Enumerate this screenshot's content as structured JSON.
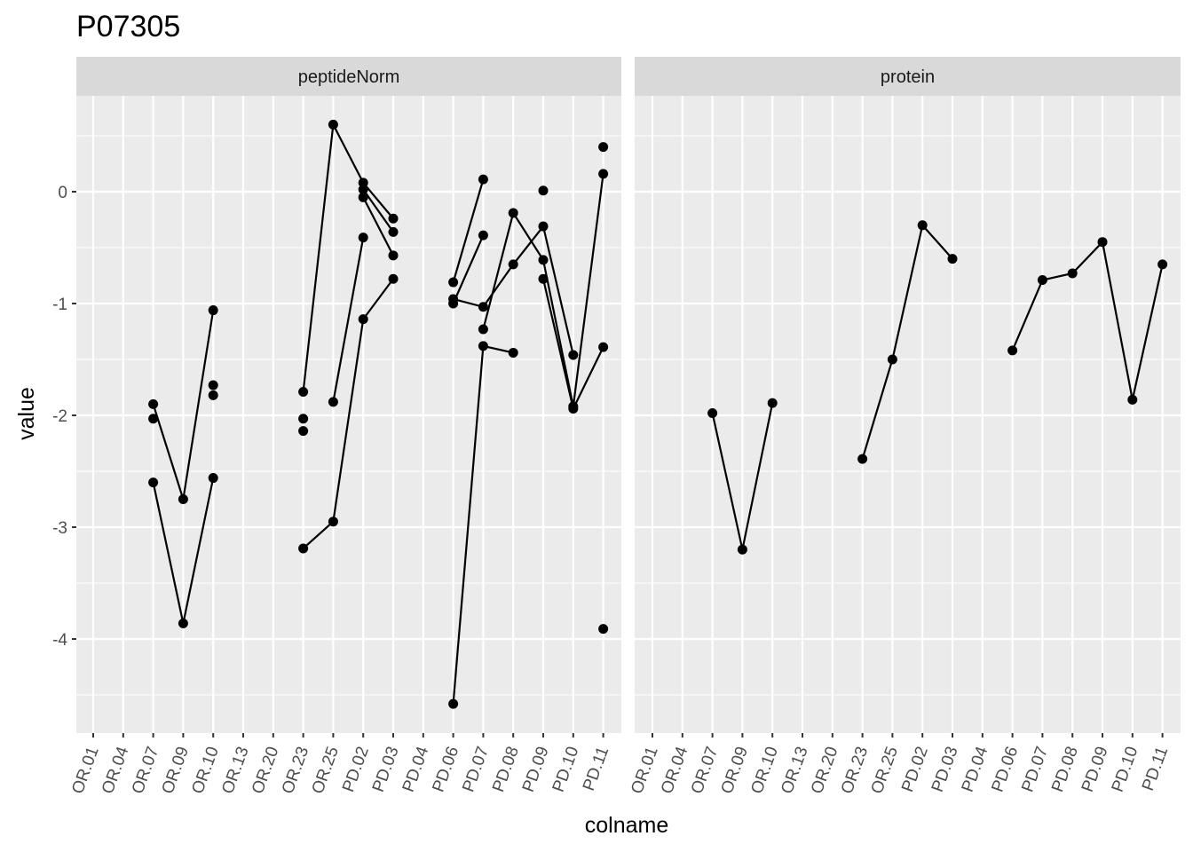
{
  "chart_data": {
    "type": "line",
    "title": "P07305",
    "xlabel": "colname",
    "ylabel": "value",
    "ylim": [
      -4.85,
      0.85
    ],
    "y_ticks": [
      0,
      -1,
      -2,
      -3,
      -4
    ],
    "y_tick_labels": [
      "0",
      "-1",
      "-2",
      "-3",
      "-4"
    ],
    "categories": [
      "OR.01",
      "OR.04",
      "OR.07",
      "OR.09",
      "OR.10",
      "OR.13",
      "OR.20",
      "OR.23",
      "OR.25",
      "PD.02",
      "PD.03",
      "PD.04",
      "PD.06",
      "PD.07",
      "PD.08",
      "PD.09",
      "PD.10",
      "PD.11"
    ],
    "grid": true,
    "legend": "none",
    "colors": {
      "panel_bg": "#ebebeb",
      "grid": "#ffffff",
      "strip_bg": "#d9d9d9",
      "marks": "#000000"
    },
    "facets": [
      {
        "name": "peptideNorm",
        "lines": [
          [
            [
              "OR.07",
              -2.6
            ],
            [
              "OR.09",
              -3.86
            ],
            [
              "OR.10",
              -2.56
            ]
          ],
          [
            [
              "OR.07",
              -1.9
            ],
            [
              "OR.09",
              -2.75
            ],
            [
              "OR.10",
              -1.06
            ]
          ],
          [
            [
              "OR.23",
              -3.19
            ],
            [
              "OR.25",
              -2.95
            ],
            [
              "PD.02",
              -1.14
            ],
            [
              "PD.03",
              -0.78
            ]
          ],
          [
            [
              "OR.23",
              -1.79
            ],
            [
              "OR.25",
              0.6
            ],
            [
              "PD.02",
              0.08
            ],
            [
              "PD.03",
              -0.24
            ]
          ],
          [
            [
              "OR.25",
              -1.88
            ],
            [
              "PD.02",
              -0.41
            ]
          ],
          [
            [
              "PD.02",
              -0.05
            ],
            [
              "PD.03",
              -0.57
            ]
          ],
          [
            [
              "PD.02",
              0.02
            ],
            [
              "PD.03",
              -0.36
            ]
          ],
          [
            [
              "PD.06",
              -4.58
            ],
            [
              "PD.07",
              -1.38
            ],
            [
              "PD.08",
              -1.44
            ]
          ],
          [
            [
              "PD.06",
              -0.96
            ],
            [
              "PD.07",
              -1.03
            ],
            [
              "PD.08",
              -0.65
            ],
            [
              "PD.09",
              -0.31
            ],
            [
              "PD.10",
              -1.46
            ]
          ],
          [
            [
              "PD.06",
              -0.81
            ],
            [
              "PD.07",
              0.11
            ]
          ],
          [
            [
              "PD.06",
              -1.0
            ],
            [
              "PD.07",
              -0.39
            ]
          ],
          [
            [
              "PD.07",
              -1.23
            ],
            [
              "PD.08",
              -0.19
            ],
            [
              "PD.09",
              -0.61
            ],
            [
              "PD.10",
              -1.92
            ],
            [
              "PD.11",
              0.16
            ]
          ],
          [
            [
              "PD.09",
              -0.78
            ],
            [
              "PD.10",
              -1.94
            ],
            [
              "PD.11",
              -1.39
            ]
          ]
        ],
        "points": [
          [
            "OR.07",
            -1.9
          ],
          [
            "OR.07",
            -2.03
          ],
          [
            "OR.07",
            -2.6
          ],
          [
            "OR.09",
            -2.75
          ],
          [
            "OR.09",
            -3.86
          ],
          [
            "OR.10",
            -1.06
          ],
          [
            "OR.10",
            -1.73
          ],
          [
            "OR.10",
            -1.82
          ],
          [
            "OR.10",
            -2.56
          ],
          [
            "OR.23",
            -1.79
          ],
          [
            "OR.23",
            -2.03
          ],
          [
            "OR.23",
            -2.14
          ],
          [
            "OR.23",
            -3.19
          ],
          [
            "OR.25",
            0.6
          ],
          [
            "OR.25",
            -1.88
          ],
          [
            "OR.25",
            -2.95
          ],
          [
            "PD.02",
            0.08
          ],
          [
            "PD.02",
            0.02
          ],
          [
            "PD.02",
            -0.05
          ],
          [
            "PD.02",
            -0.41
          ],
          [
            "PD.02",
            -1.14
          ],
          [
            "PD.03",
            -0.24
          ],
          [
            "PD.03",
            -0.36
          ],
          [
            "PD.03",
            -0.57
          ],
          [
            "PD.03",
            -0.78
          ],
          [
            "PD.06",
            -0.81
          ],
          [
            "PD.06",
            -0.96
          ],
          [
            "PD.06",
            -1.0
          ],
          [
            "PD.06",
            -4.58
          ],
          [
            "PD.07",
            0.11
          ],
          [
            "PD.07",
            -0.39
          ],
          [
            "PD.07",
            -1.03
          ],
          [
            "PD.07",
            -1.23
          ],
          [
            "PD.07",
            -1.38
          ],
          [
            "PD.08",
            -0.19
          ],
          [
            "PD.08",
            -0.65
          ],
          [
            "PD.08",
            -1.44
          ],
          [
            "PD.09",
            0.01
          ],
          [
            "PD.09",
            -0.31
          ],
          [
            "PD.09",
            -0.61
          ],
          [
            "PD.09",
            -0.78
          ],
          [
            "PD.10",
            -1.46
          ],
          [
            "PD.10",
            -1.92
          ],
          [
            "PD.10",
            -1.94
          ],
          [
            "PD.11",
            0.4
          ],
          [
            "PD.11",
            0.16
          ],
          [
            "PD.11",
            -1.39
          ],
          [
            "PD.11",
            -3.91
          ]
        ]
      },
      {
        "name": "protein",
        "lines": [
          [
            [
              "OR.07",
              -1.98
            ],
            [
              "OR.09",
              -3.2
            ],
            [
              "OR.10",
              -1.89
            ]
          ],
          [
            [
              "OR.23",
              -2.39
            ],
            [
              "OR.25",
              -1.5
            ],
            [
              "PD.02",
              -0.3
            ],
            [
              "PD.03",
              -0.6
            ]
          ],
          [
            [
              "PD.06",
              -1.42
            ],
            [
              "PD.07",
              -0.79
            ],
            [
              "PD.08",
              -0.73
            ],
            [
              "PD.09",
              -0.45
            ],
            [
              "PD.10",
              -1.86
            ],
            [
              "PD.11",
              -0.65
            ]
          ]
        ],
        "points": [
          [
            "OR.07",
            -1.98
          ],
          [
            "OR.09",
            -3.2
          ],
          [
            "OR.10",
            -1.89
          ],
          [
            "OR.23",
            -2.39
          ],
          [
            "OR.25",
            -1.5
          ],
          [
            "PD.02",
            -0.3
          ],
          [
            "PD.03",
            -0.6
          ],
          [
            "PD.06",
            -1.42
          ],
          [
            "PD.07",
            -0.79
          ],
          [
            "PD.08",
            -0.73
          ],
          [
            "PD.09",
            -0.45
          ],
          [
            "PD.10",
            -1.86
          ],
          [
            "PD.11",
            -0.65
          ]
        ]
      }
    ]
  }
}
